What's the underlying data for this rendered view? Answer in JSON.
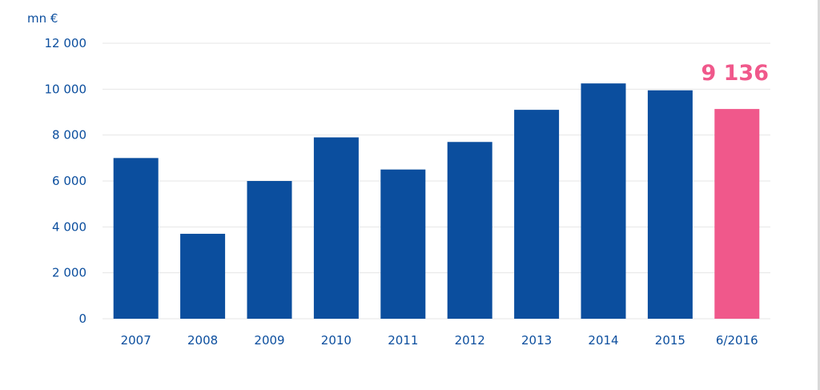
{
  "chart_data": {
    "type": "bar",
    "unit_label": "mn €",
    "categories": [
      "2007",
      "2008",
      "2009",
      "2010",
      "2011",
      "2012",
      "2013",
      "2014",
      "2015",
      "6/2016"
    ],
    "values": [
      7000,
      3700,
      6000,
      7900,
      6500,
      7700,
      9100,
      10250,
      9950,
      9136
    ],
    "y_ticks": [
      "0",
      "2 000",
      "4 000",
      "6 000",
      "8 000",
      "10 000",
      "12 000"
    ],
    "ylim": [
      0,
      12000
    ],
    "highlight_index": 9,
    "highlight_label": "9 136",
    "grid": true,
    "colors": {
      "bar": "#0b4e9e",
      "highlight": "#f0588b",
      "grid": "#e6e6e6",
      "text": "#0b4e9e"
    }
  }
}
